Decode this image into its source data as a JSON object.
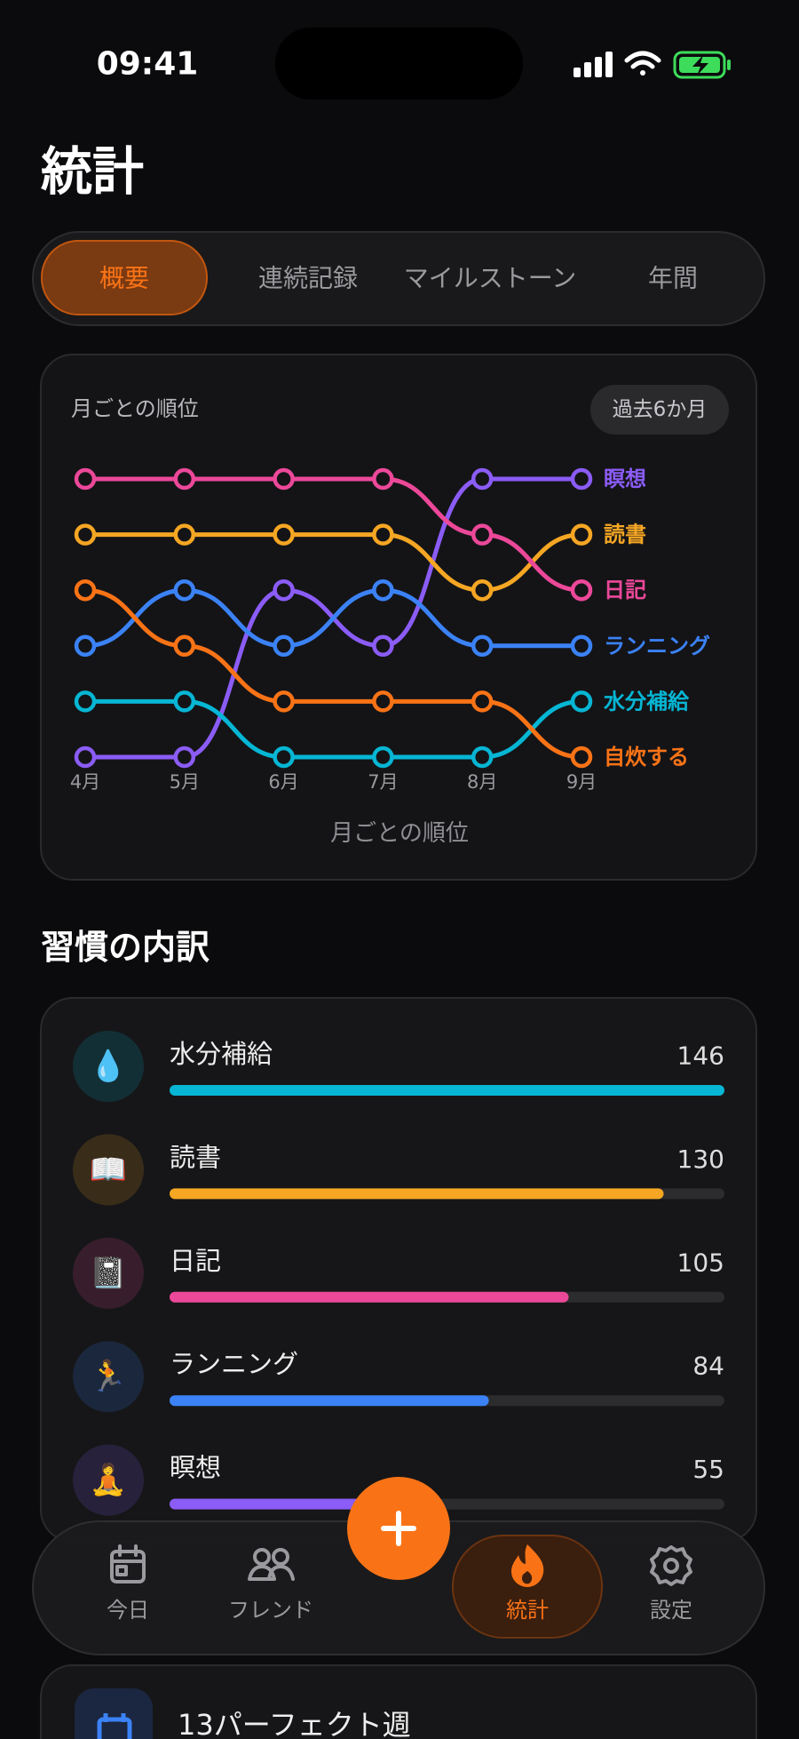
{
  "status_bar": {
    "time": "09:41"
  },
  "header": {
    "title": "統計"
  },
  "tabs": [
    {
      "label": "概要",
      "active": true
    },
    {
      "label": "連続記録",
      "active": false
    },
    {
      "label": "マイルストーン",
      "active": false
    },
    {
      "label": "年間",
      "active": false
    }
  ],
  "chart_data": {
    "type": "line",
    "title": "月ごとの順位",
    "period": "過去6か月",
    "xlabel": "月ごとの順位",
    "categories": [
      "4月",
      "5月",
      "6月",
      "7月",
      "8月",
      "9月"
    ],
    "ylim": [
      6,
      1
    ],
    "series": [
      {
        "name": "瞑想",
        "color": "#8b5cf6",
        "values": [
          6,
          6,
          3,
          4,
          1,
          1
        ]
      },
      {
        "name": "読書",
        "color": "#f5a623",
        "values": [
          2,
          2,
          2,
          2,
          3,
          2
        ]
      },
      {
        "name": "日記",
        "color": "#ec4899",
        "values": [
          1,
          1,
          1,
          1,
          2,
          3
        ]
      },
      {
        "name": "ランニング",
        "color": "#3b82f6",
        "values": [
          4,
          3,
          4,
          3,
          4,
          4
        ]
      },
      {
        "name": "水分補給",
        "color": "#06b6d4",
        "values": [
          5,
          5,
          6,
          6,
          6,
          5
        ]
      },
      {
        "name": "自炊する",
        "color": "#f97316",
        "values": [
          3,
          4,
          5,
          5,
          5,
          6
        ]
      }
    ]
  },
  "habit_breakdown": {
    "title": "習慣の内訳",
    "xlim": [
      0,
      146
    ],
    "items": [
      {
        "icon": "💧",
        "name": "水分補給",
        "value": 146,
        "color": "#06b6d4"
      },
      {
        "icon": "📖",
        "name": "読書",
        "value": 130,
        "color": "#f5a623"
      },
      {
        "icon": "📓",
        "name": "日記",
        "value": 105,
        "color": "#ec4899"
      },
      {
        "icon": "🏃",
        "name": "ランニング",
        "value": 84,
        "color": "#3b82f6"
      },
      {
        "icon": "🧘",
        "name": "瞑想",
        "value": 55,
        "color": "#8b5cf6"
      }
    ]
  },
  "nav": {
    "items": [
      {
        "label": "今日",
        "active": false
      },
      {
        "label": "フレンド",
        "active": false
      },
      {
        "label": "統計",
        "active": true
      },
      {
        "label": "設定",
        "active": false
      }
    ]
  },
  "achievement": {
    "label": "13パーフェクト週"
  }
}
